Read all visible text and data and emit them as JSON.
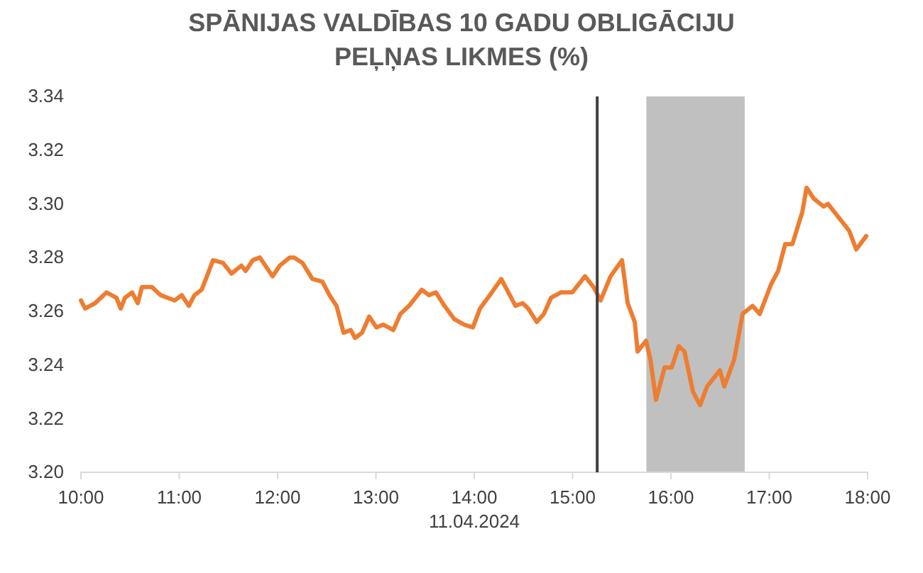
{
  "chart_data": {
    "type": "line",
    "title": "SPĀNIJAS VALDĪBAS 10 GADU OBLIGĀCIJU PEĻŅAS LIKMES (%)",
    "xlabel": "11.04.2024",
    "xlim": [
      10,
      18
    ],
    "xticks": [
      {
        "value": 10,
        "label": "10:00"
      },
      {
        "value": 11,
        "label": "11:00"
      },
      {
        "value": 12,
        "label": "12:00"
      },
      {
        "value": 13,
        "label": "13:00"
      },
      {
        "value": 14,
        "label": "14:00"
      },
      {
        "value": 15,
        "label": "15:00"
      },
      {
        "value": 16,
        "label": "16:00"
      },
      {
        "value": 17,
        "label": "17:00"
      },
      {
        "value": 18,
        "label": "18:00"
      }
    ],
    "ylim": [
      3.2,
      3.34
    ],
    "yticks": [
      {
        "value": 3.2,
        "label": "3.20"
      },
      3.22,
      3.24,
      3.26,
      3.28,
      {
        "value": 3.3,
        "label": "3.30"
      },
      3.32,
      3.34
    ],
    "grid": false,
    "line_style": "solid",
    "ref_lines": [
      {
        "axis": "x",
        "value": 15.25,
        "label": null,
        "color": "#404040"
      }
    ],
    "bands": [
      {
        "axis": "x",
        "from": 15.75,
        "to": 16.75,
        "label": null,
        "color": "#c0c0c0"
      }
    ],
    "series": [
      {
        "color": "#ed7d31",
        "x": [
          10.0,
          10.043,
          10.144,
          10.26,
          10.361,
          10.404,
          10.448,
          10.52,
          10.578,
          10.621,
          10.722,
          10.809,
          10.953,
          11.025,
          11.097,
          11.155,
          11.227,
          11.271,
          11.343,
          11.444,
          11.531,
          11.632,
          11.675,
          11.747,
          11.819,
          11.949,
          12.022,
          12.123,
          12.166,
          12.253,
          12.354,
          12.455,
          12.527,
          12.599,
          12.671,
          12.744,
          12.787,
          12.859,
          12.931,
          13.004,
          13.076,
          13.177,
          13.249,
          13.336,
          13.466,
          13.538,
          13.61,
          13.697,
          13.798,
          13.899,
          13.986,
          14.058,
          14.159,
          14.274,
          14.347,
          14.419,
          14.491,
          14.549,
          14.635,
          14.708,
          14.78,
          14.881,
          14.996,
          15.126,
          15.213,
          15.285,
          15.386,
          15.502,
          15.56,
          15.632,
          15.661,
          15.747,
          15.791,
          15.848,
          15.935,
          16.007,
          16.079,
          16.137,
          16.224,
          16.296,
          16.368,
          16.498,
          16.542,
          16.643,
          16.729,
          16.83,
          16.903,
          17.018,
          17.09,
          17.162,
          17.235,
          17.336,
          17.379,
          17.451,
          17.552,
          17.596,
          17.726,
          17.812,
          17.884,
          17.986
        ],
        "values": [
          3.264,
          3.261,
          3.263,
          3.267,
          3.265,
          3.261,
          3.265,
          3.267,
          3.263,
          3.269,
          3.269,
          3.266,
          3.264,
          3.266,
          3.262,
          3.266,
          3.268,
          3.272,
          3.279,
          3.278,
          3.274,
          3.277,
          3.275,
          3.279,
          3.28,
          3.273,
          3.277,
          3.28,
          3.28,
          3.278,
          3.272,
          3.271,
          3.266,
          3.262,
          3.252,
          3.253,
          3.25,
          3.252,
          3.258,
          3.254,
          3.255,
          3.253,
          3.259,
          3.262,
          3.268,
          3.266,
          3.267,
          3.262,
          3.257,
          3.255,
          3.254,
          3.261,
          3.266,
          3.272,
          3.267,
          3.262,
          3.263,
          3.261,
          3.256,
          3.259,
          3.265,
          3.267,
          3.267,
          3.273,
          3.269,
          3.264,
          3.273,
          3.279,
          3.263,
          3.256,
          3.245,
          3.249,
          3.242,
          3.227,
          3.239,
          3.239,
          3.247,
          3.245,
          3.23,
          3.225,
          3.232,
          3.238,
          3.232,
          3.242,
          3.259,
          3.262,
          3.259,
          3.27,
          3.275,
          3.285,
          3.285,
          3.297,
          3.306,
          3.302,
          3.299,
          3.3,
          3.294,
          3.29,
          3.283,
          3.288
        ]
      }
    ]
  }
}
